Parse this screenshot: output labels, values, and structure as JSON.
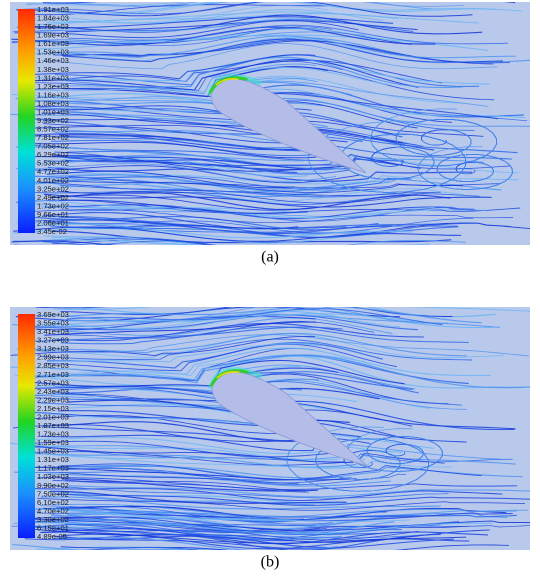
{
  "panels": [
    {
      "caption": "(a)",
      "colorbar_labels": [
        "1.91e+03",
        "1.84e+03",
        "1.76e+03",
        "1.69e+03",
        "1.61e+03",
        "1.53e+03",
        "1.46e+03",
        "1.38e+03",
        "1.31e+03",
        "1.23e+03",
        "1.16e+03",
        "1.08e+03",
        "1.01e+03",
        "9.33e+02",
        "8.57e+02",
        "7.81e+02",
        "7.05e+02",
        "6.29e+02",
        "5.53e+02",
        "4.77e+02",
        "4.01e+02",
        "3.25e+02",
        "2.49e+02",
        "1.73e+02",
        "9.66e+01",
        "2.06e+01",
        "3.45e-02"
      ]
    },
    {
      "caption": "(b)",
      "colorbar_labels": [
        "3.69e+03",
        "3.55e+03",
        "3.41e+03",
        "3.27e+03",
        "3.13e+03",
        "2.99e+03",
        "2.85e+03",
        "2.71e+03",
        "2.57e+03",
        "2.43e+03",
        "2.29e+03",
        "2.15e+03",
        "2.01e+03",
        "1.87e+03",
        "1.73e+03",
        "1.59e+03",
        "1.45e+03",
        "1.31e+03",
        "1.17e+03",
        "1.03e+03",
        "8.90e+02",
        "7.50e+02",
        "6.10e+02",
        "4.70e+02",
        "3.30e+02",
        "6.15e+01",
        "4.89e-05"
      ]
    }
  ]
}
